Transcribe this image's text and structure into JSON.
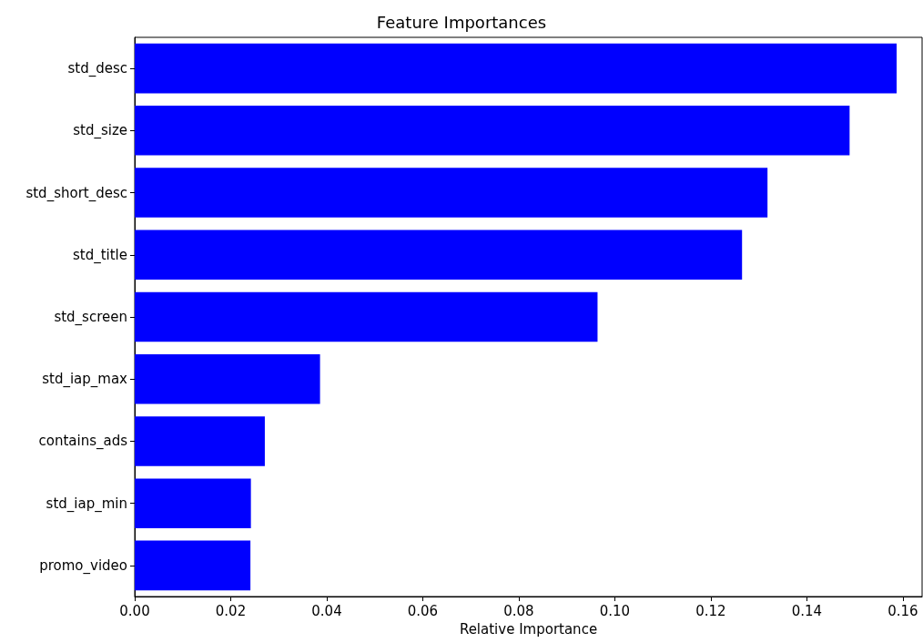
{
  "chart_data": {
    "type": "bar",
    "orientation": "horizontal",
    "title": "Feature Importances",
    "xlabel": "Relative Importance",
    "categories": [
      "std_desc",
      "std_size",
      "std_short_desc",
      "std_title",
      "std_screen",
      "std_iap_max",
      "contains_ads",
      "std_iap_min",
      "promo_video"
    ],
    "values": [
      0.1587,
      0.1489,
      0.1318,
      0.1265,
      0.0964,
      0.0386,
      0.0271,
      0.0242,
      0.0241
    ],
    "color": "#0000ff",
    "xlim": [
      0,
      0.164
    ],
    "xticks": [
      {
        "value": 0,
        "label": "0.00"
      },
      {
        "value": 0.02,
        "label": "0.02"
      },
      {
        "value": 0.04,
        "label": "0.04"
      },
      {
        "value": 0.06,
        "label": "0.06"
      },
      {
        "value": 0.08,
        "label": "0.08"
      },
      {
        "value": 0.1,
        "label": "0.10"
      },
      {
        "value": 0.12,
        "label": "0.12"
      },
      {
        "value": 0.14,
        "label": "0.14"
      },
      {
        "value": 0.16,
        "label": "0.16"
      }
    ],
    "grid": false
  }
}
